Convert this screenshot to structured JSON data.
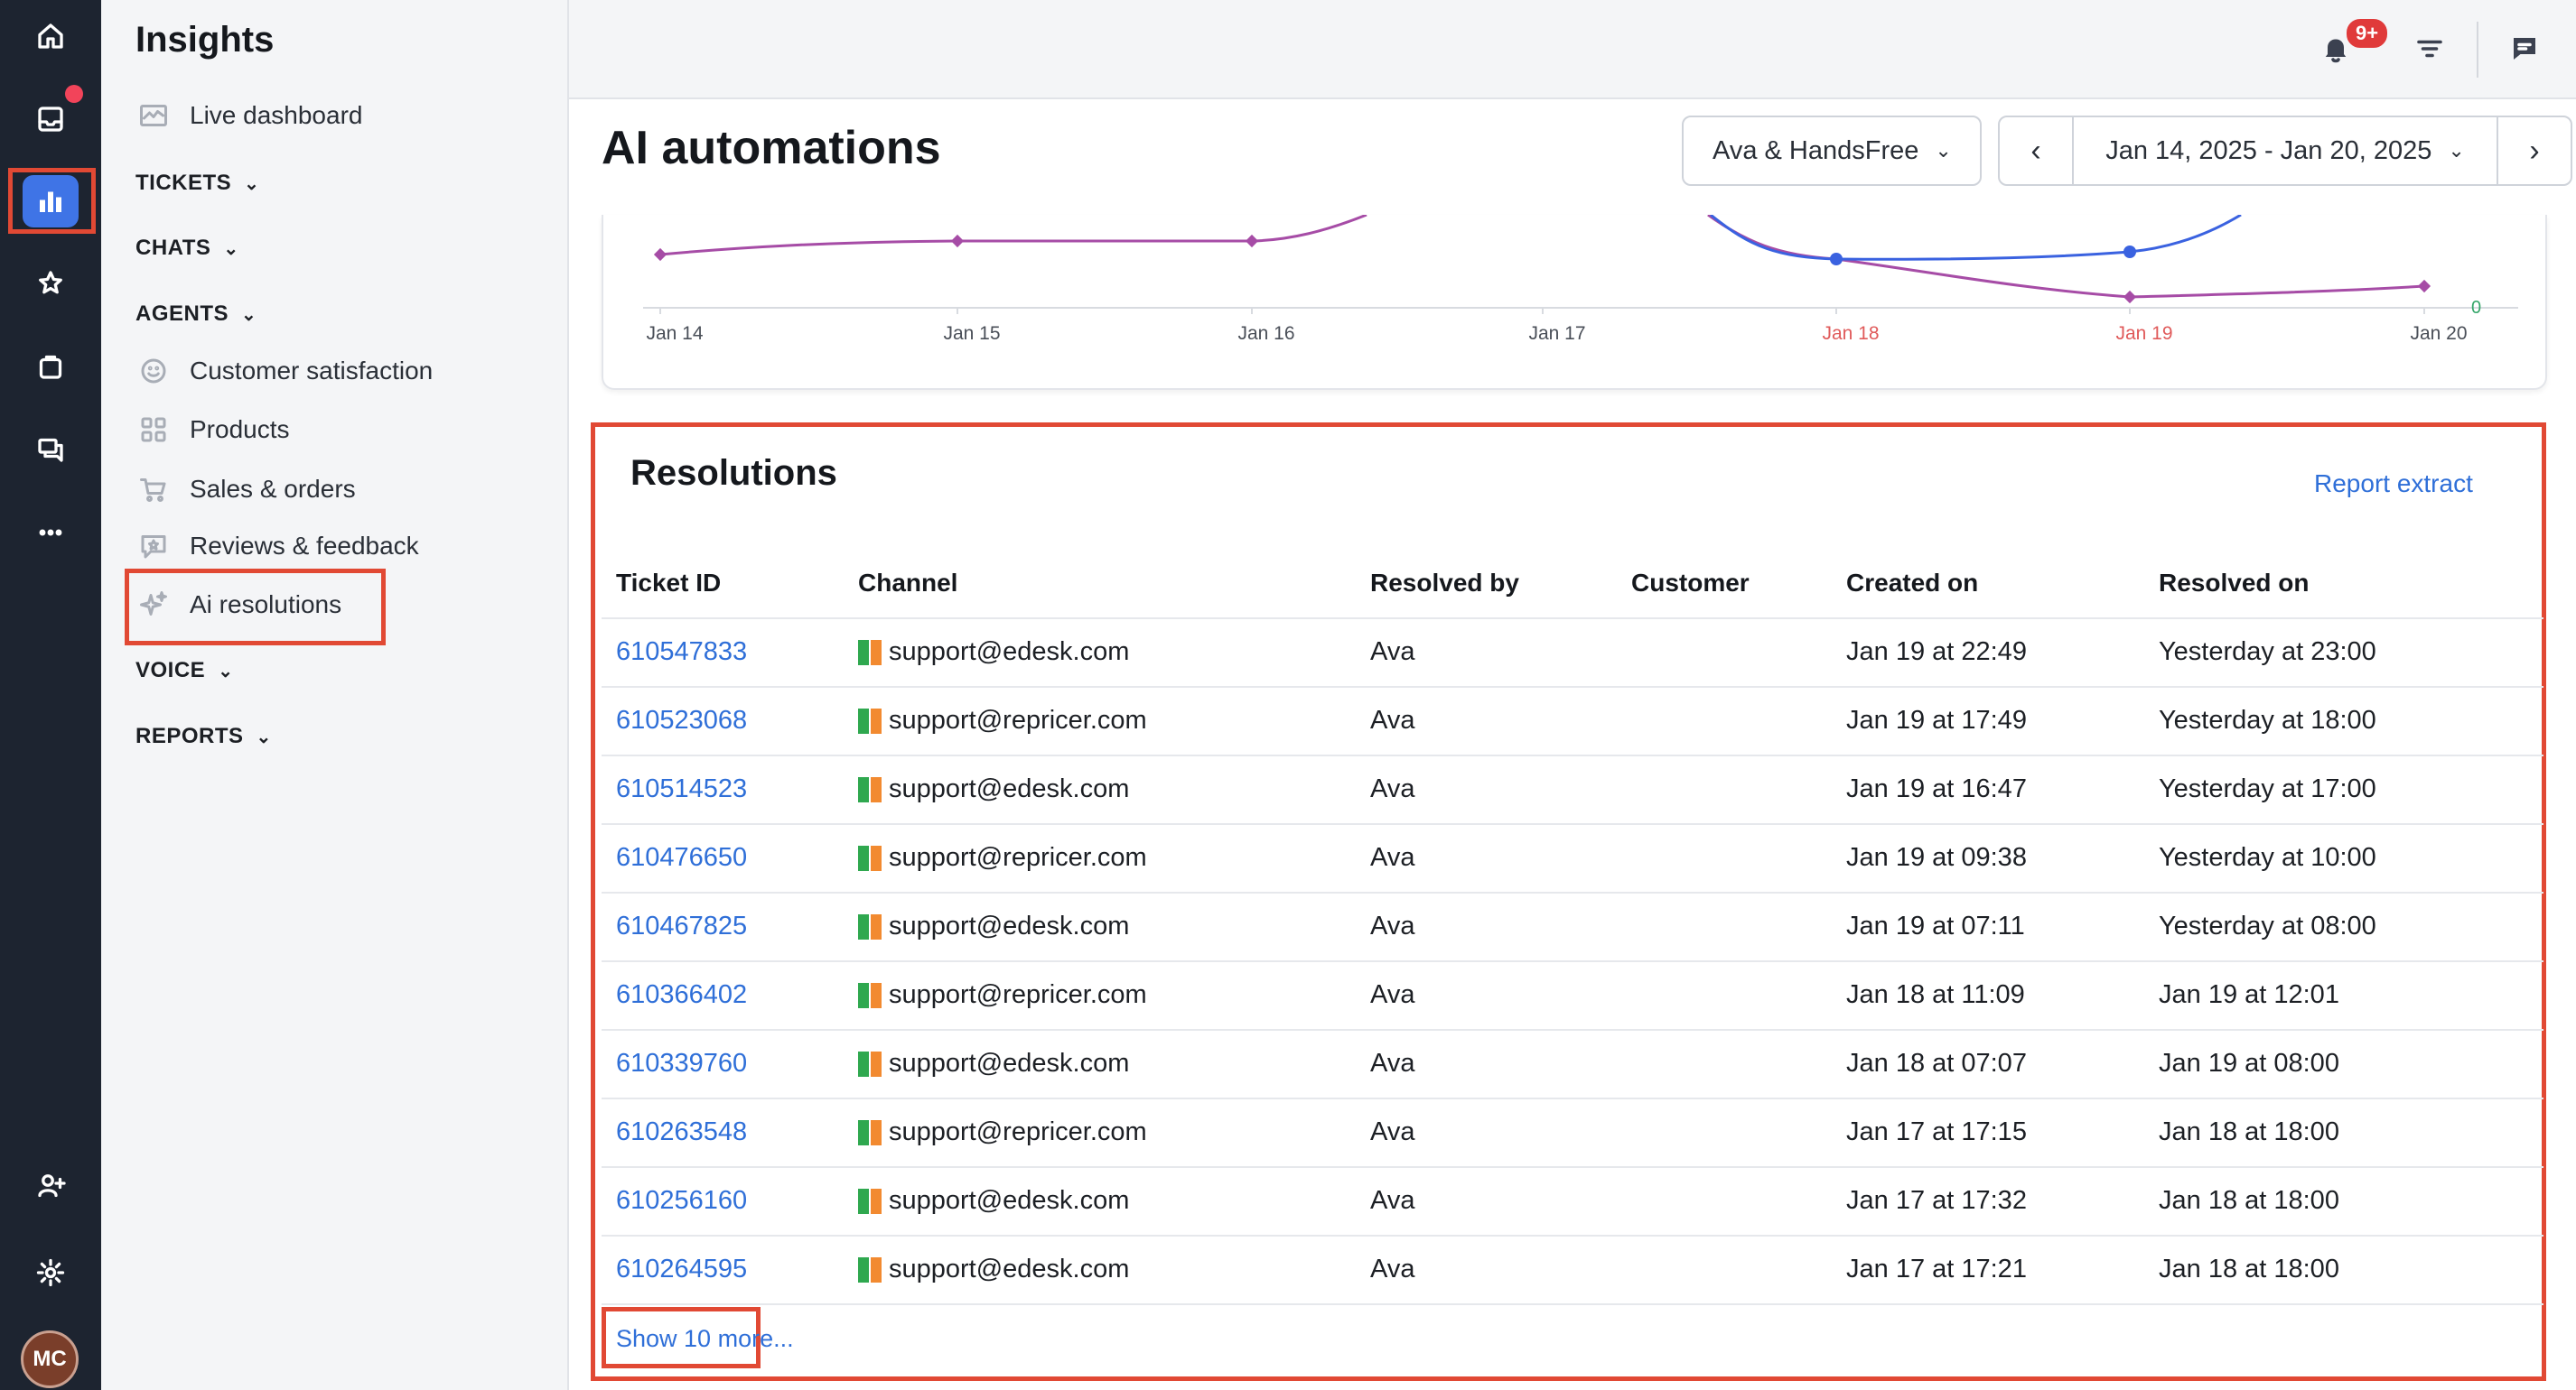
{
  "rail": {
    "avatar_initials": "MC"
  },
  "sidebar": {
    "title": "Insights",
    "items": [
      {
        "label": "Live dashboard",
        "icon": "live-dashboard-icon"
      },
      {
        "label": "TICKETS"
      },
      {
        "label": "CHATS"
      },
      {
        "label": "AGENTS"
      },
      {
        "label": "Customer satisfaction",
        "icon": "smiley-icon"
      },
      {
        "label": "Products",
        "icon": "grid-icon"
      },
      {
        "label": "Sales & orders",
        "icon": "cart-icon"
      },
      {
        "label": "Reviews & feedback",
        "icon": "review-icon"
      },
      {
        "label": "Ai resolutions",
        "icon": "sparkle-icon"
      },
      {
        "label": "VOICE"
      },
      {
        "label": "REPORTS"
      }
    ]
  },
  "topbar": {
    "notification_badge": "9+"
  },
  "header": {
    "title": "AI automations",
    "agent_filter": "Ava & HandsFree",
    "date_range": "Jan 14, 2025 - Jan 20, 2025"
  },
  "chart_data": {
    "type": "line",
    "categories": [
      "Jan 14",
      "Jan 15",
      "Jan 16",
      "Jan 17",
      "Jan 18",
      "Jan 19",
      "Jan 20"
    ],
    "weekend_color": "#e05a5a",
    "y_zero_label": "0",
    "series": [
      {
        "color": "#a64ca6",
        "values": [
          null,
          null,
          null,
          null,
          null,
          null,
          null
        ]
      },
      {
        "color": "#3a62e0",
        "values": [
          null,
          null,
          null,
          null,
          null,
          null,
          null
        ]
      }
    ]
  },
  "resolutions": {
    "title": "Resolutions",
    "report_link": "Report extract",
    "columns": [
      "Ticket ID",
      "Channel",
      "Resolved by",
      "Customer",
      "Created on",
      "Resolved on"
    ],
    "rows": [
      {
        "id": "610547833",
        "channel": "support@edesk.com",
        "resolved_by": "Ava",
        "customer": "",
        "created": "Jan 19 at 22:49",
        "resolved": "Yesterday at 23:00"
      },
      {
        "id": "610523068",
        "channel": "support@repricer.com",
        "resolved_by": "Ava",
        "customer": "",
        "created": "Jan 19 at 17:49",
        "resolved": "Yesterday at 18:00"
      },
      {
        "id": "610514523",
        "channel": "support@edesk.com",
        "resolved_by": "Ava",
        "customer": "",
        "created": "Jan 19 at 16:47",
        "resolved": "Yesterday at 17:00"
      },
      {
        "id": "610476650",
        "channel": "support@repricer.com",
        "resolved_by": "Ava",
        "customer": "",
        "created": "Jan 19 at 09:38",
        "resolved": "Yesterday at 10:00"
      },
      {
        "id": "610467825",
        "channel": "support@edesk.com",
        "resolved_by": "Ava",
        "customer": "",
        "created": "Jan 19 at 07:11",
        "resolved": "Yesterday at 08:00"
      },
      {
        "id": "610366402",
        "channel": "support@repricer.com",
        "resolved_by": "Ava",
        "customer": "",
        "created": "Jan 18 at 11:09",
        "resolved": "Jan 19 at 12:01"
      },
      {
        "id": "610339760",
        "channel": "support@edesk.com",
        "resolved_by": "Ava",
        "customer": "",
        "created": "Jan 18 at 07:07",
        "resolved": "Jan 19 at 08:00"
      },
      {
        "id": "610263548",
        "channel": "support@repricer.com",
        "resolved_by": "Ava",
        "customer": "",
        "created": "Jan 17 at 17:15",
        "resolved": "Jan 18 at 18:00"
      },
      {
        "id": "610256160",
        "channel": "support@edesk.com",
        "resolved_by": "Ava",
        "customer": "",
        "created": "Jan 17 at 17:32",
        "resolved": "Jan 18 at 18:00"
      },
      {
        "id": "610264595",
        "channel": "support@edesk.com",
        "resolved_by": "Ava",
        "customer": "",
        "created": "Jan 17 at 17:21",
        "resolved": "Jan 18 at 18:00"
      }
    ],
    "show_more": "Show 10 more..."
  },
  "colors": {
    "accent": "#3f74e6",
    "link": "#2f6fd8",
    "highlight_outline": "#e14934",
    "rail_bg": "#1d2430",
    "flag_green": "#2fa84f",
    "flag_orange": "#f28a30"
  }
}
